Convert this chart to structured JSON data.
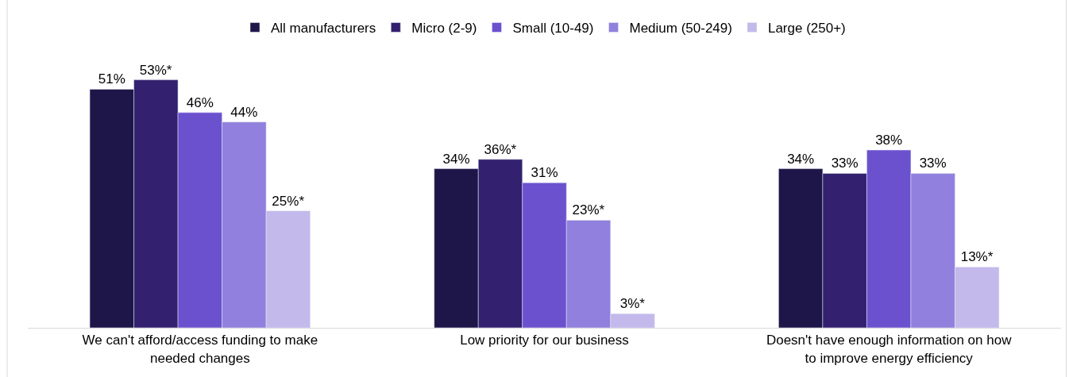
{
  "chart_data": {
    "type": "bar",
    "categories": [
      "We can't afford/access funding to make needed changes",
      "Low priority for our business",
      "Doesn't have enough information on how to improve energy efficiency"
    ],
    "series": [
      {
        "name": "All manufacturers",
        "color": "#1e1548",
        "values": [
          51,
          34,
          34
        ],
        "value_labels": [
          "51%",
          "34%",
          "34%"
        ]
      },
      {
        "name": "Micro (2-9)",
        "color": "#33206f",
        "values": [
          53,
          36,
          33
        ],
        "value_labels": [
          "53%*",
          "36%*",
          "33%"
        ]
      },
      {
        "name": "Small (10-49)",
        "color": "#6c51cf",
        "values": [
          46,
          31,
          38
        ],
        "value_labels": [
          "46%",
          "31%",
          "38%"
        ]
      },
      {
        "name": "Medium (50-249)",
        "color": "#9180dd",
        "values": [
          44,
          23,
          33
        ],
        "value_labels": [
          "44%",
          "23%*",
          "33%"
        ]
      },
      {
        "name": "Large (250+)",
        "color": "#c3b9eb",
        "values": [
          25,
          3,
          13
        ],
        "value_labels": [
          "25%*",
          "3%*",
          "13%*"
        ]
      }
    ],
    "legend": "top"
  }
}
